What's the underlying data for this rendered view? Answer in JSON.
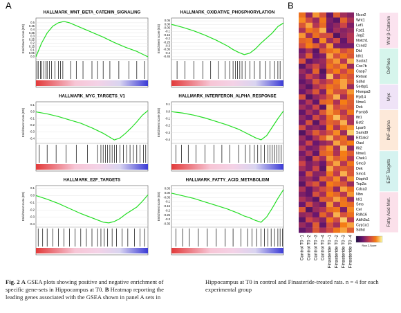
{
  "panel_a": {
    "label": "A",
    "y_label": "Enrichment score (ES)",
    "curve_color": "#22dd22",
    "plots": [
      {
        "title": "HALLMARK_WNT_BETA_CATENIN_SIGNALING",
        "ylim": [
          -0.02,
          0.55
        ],
        "yticks": [
          0.5,
          0.45,
          0.4,
          0.35,
          0.3,
          0.25,
          0.2,
          0.15,
          0.1,
          0.05,
          {
            "value": 0,
            "label": "0.0"
          }
        ],
        "x": [
          0,
          0.05,
          0.1,
          0.15,
          0.2,
          0.25,
          0.3,
          0.4,
          0.5,
          0.6,
          0.7,
          0.8,
          0.9,
          0.95,
          1
        ],
        "values": [
          0,
          0.2,
          0.35,
          0.45,
          0.5,
          0.52,
          0.5,
          0.43,
          0.36,
          0.29,
          0.21,
          0.14,
          0.08,
          0.04,
          0
        ],
        "hits": [
          0.01,
          0.02,
          0.04,
          0.05,
          0.07,
          0.09,
          0.1,
          0.12,
          0.14,
          0.17,
          0.2,
          0.22,
          0.24,
          0.31,
          0.36,
          0.42,
          0.5,
          0.55,
          0.6,
          0.66,
          0.74,
          0.83,
          0.9,
          0.97
        ]
      },
      {
        "title": "HALLMARK_OXIDATIVE_PHOSPHORYLATION",
        "ylim": [
          -0.47,
          0.07
        ],
        "yticks": [
          0.05,
          {
            "value": 0,
            "label": "0.00"
          },
          -0.05,
          -0.1,
          -0.15,
          -0.2,
          -0.25,
          -0.3,
          -0.35,
          -0.4,
          -0.45
        ],
        "x": [
          0,
          0.1,
          0.2,
          0.3,
          0.4,
          0.5,
          0.55,
          0.6,
          0.65,
          0.7,
          0.75,
          0.8,
          0.9,
          0.95,
          1
        ],
        "values": [
          0,
          -0.04,
          -0.09,
          -0.15,
          -0.22,
          -0.3,
          -0.35,
          -0.39,
          -0.42,
          -0.4,
          -0.34,
          -0.26,
          -0.12,
          -0.03,
          0.02
        ],
        "hits": [
          0.05,
          0.12,
          0.2,
          0.28,
          0.35,
          0.42,
          0.48,
          0.52,
          0.55,
          0.57,
          0.59,
          0.61,
          0.63,
          0.66,
          0.7,
          0.74,
          0.79,
          0.84,
          0.88,
          0.92,
          0.95,
          0.97
        ]
      },
      {
        "title": "HALLMARK_MYC_TARGETS_V1",
        "ylim": [
          -0.45,
          0.13
        ],
        "yticks": [
          0.1,
          {
            "value": 0,
            "label": "0.0"
          },
          -0.1,
          -0.2,
          -0.3,
          -0.4
        ],
        "x": [
          0,
          0.1,
          0.2,
          0.3,
          0.4,
          0.5,
          0.6,
          0.65,
          0.7,
          0.75,
          0.8,
          0.85,
          0.9,
          0.95,
          1
        ],
        "values": [
          0,
          -0.03,
          -0.07,
          -0.12,
          -0.17,
          -0.24,
          -0.32,
          -0.37,
          -0.42,
          -0.39,
          -0.32,
          -0.24,
          -0.15,
          -0.05,
          0.02
        ],
        "hits": [
          0.03,
          0.1,
          0.18,
          0.27,
          0.36,
          0.46,
          0.55,
          0.58,
          0.6,
          0.62,
          0.64,
          0.66,
          0.68,
          0.7,
          0.72,
          0.75,
          0.78,
          0.81,
          0.84,
          0.87,
          0.9,
          0.93,
          0.96,
          0.98
        ]
      },
      {
        "title": "HALLMARK_INTERFERON_ALPHA_RESPONSE",
        "ylim": [
          -0.43,
          0.12
        ],
        "yticks": [
          0.1,
          {
            "value": 0,
            "label": "0.0"
          },
          -0.1,
          -0.2,
          -0.3,
          -0.4
        ],
        "x": [
          0,
          0.1,
          0.2,
          0.3,
          0.4,
          0.5,
          0.6,
          0.65,
          0.7,
          0.75,
          0.8,
          0.85,
          0.9,
          0.95,
          1
        ],
        "values": [
          0,
          -0.02,
          -0.05,
          -0.09,
          -0.14,
          -0.19,
          -0.25,
          -0.29,
          -0.33,
          -0.37,
          -0.4,
          -0.34,
          -0.22,
          -0.1,
          0.01
        ],
        "hits": [
          0.04,
          0.09,
          0.15,
          0.22,
          0.3,
          0.38,
          0.45,
          0.52,
          0.6,
          0.66,
          0.7,
          0.74,
          0.77,
          0.8,
          0.83,
          0.86,
          0.88,
          0.9,
          0.92,
          0.94,
          0.96,
          0.98
        ]
      },
      {
        "title": "HALLMARK_E2F_TARGETS",
        "ylim": [
          -0.42,
          0.12
        ],
        "yticks": [
          0.1,
          {
            "value": 0,
            "label": "0.0"
          },
          -0.1,
          -0.2,
          -0.3,
          -0.4
        ],
        "x": [
          0,
          0.1,
          0.2,
          0.3,
          0.4,
          0.5,
          0.55,
          0.6,
          0.65,
          0.7,
          0.75,
          0.8,
          0.9,
          0.95,
          1
        ],
        "values": [
          0,
          -0.05,
          -0.11,
          -0.18,
          -0.25,
          -0.31,
          -0.34,
          -0.37,
          -0.38,
          -0.36,
          -0.32,
          -0.26,
          -0.16,
          -0.08,
          0.01
        ],
        "hits": [
          0.02,
          0.06,
          0.1,
          0.15,
          0.2,
          0.25,
          0.3,
          0.35,
          0.4,
          0.45,
          0.5,
          0.55,
          0.58,
          0.61,
          0.64,
          0.68,
          0.72,
          0.77,
          0.82,
          0.88,
          0.93,
          0.97
        ]
      },
      {
        "title": "HALLMARK_FATTY_ACID_METABOLISM",
        "ylim": [
          -0.37,
          0.07
        ],
        "yticks": [
          0.05,
          {
            "value": 0,
            "label": "0.00"
          },
          -0.05,
          -0.1,
          -0.15,
          -0.2,
          -0.25,
          -0.3,
          -0.35
        ],
        "x": [
          0,
          0.1,
          0.2,
          0.3,
          0.4,
          0.5,
          0.6,
          0.65,
          0.7,
          0.75,
          0.8,
          0.85,
          0.9,
          0.95,
          1
        ],
        "values": [
          0,
          -0.03,
          -0.06,
          -0.1,
          -0.14,
          -0.18,
          -0.23,
          -0.26,
          -0.28,
          -0.31,
          -0.33,
          -0.27,
          -0.17,
          -0.06,
          0.04
        ],
        "hits": [
          0.04,
          0.1,
          0.16,
          0.24,
          0.32,
          0.4,
          0.48,
          0.55,
          0.62,
          0.68,
          0.72,
          0.76,
          0.8,
          0.83,
          0.86,
          0.89,
          0.92,
          0.95,
          0.97,
          0.99
        ]
      }
    ]
  },
  "panel_b": {
    "label": "B",
    "zlim": [
      -2,
      2
    ],
    "colormap": [
      "#1b0c41",
      "#6a176e",
      "#c73e4c",
      "#f57d15",
      "#fcffa4"
    ],
    "colorbar_label": "Row Z-Score",
    "columns": [
      "Control T0 -1",
      "Control T0 -2",
      "Control T0 -3",
      "Control T0 -4",
      "Finasteride T0 -1",
      "Finasteride T0 -2",
      "Finasteride T0 -3",
      "Finasteride T0 -4"
    ],
    "groups": [
      {
        "label": "Wnt β-Catenin",
        "color": "#fbe3ef",
        "genes": [
          "Ncor2",
          "Wnt1",
          "Lef1",
          "Fzd1",
          "Jag2",
          "Notch1",
          "Ccnd2"
        ],
        "values": [
          [
            0.8,
            -0.6,
            1.2,
            0.3,
            -1.1,
            0.5,
            -0.4,
            -0.7
          ],
          [
            1.1,
            0.2,
            -0.5,
            0.9,
            -0.8,
            -1.2,
            0.6,
            -0.3
          ],
          [
            0.4,
            1.3,
            -0.2,
            0.7,
            -0.9,
            -0.6,
            0.1,
            -0.8
          ],
          [
            -0.3,
            0.9,
            0.6,
            1.4,
            -1.0,
            -0.4,
            -0.7,
            -0.5
          ],
          [
            1.2,
            -0.4,
            0.8,
            0.2,
            0.3,
            -1.3,
            -0.6,
            -0.2
          ],
          [
            0.6,
            0.8,
            -0.9,
            1.1,
            -0.5,
            0.2,
            -1.1,
            -0.2
          ],
          [
            0.2,
            1.0,
            0.5,
            -0.3,
            1.2,
            -0.8,
            -0.9,
            -0.9
          ]
        ]
      },
      {
        "label": "OxPhos",
        "color": "#d6f5ec",
        "genes": [
          "Dld",
          "Idh1",
          "Sucla2",
          "Cox7b",
          "Casp7",
          "Retsat",
          "Sdhd"
        ],
        "values": [
          [
            -0.9,
            -0.3,
            -1.2,
            0.4,
            0.8,
            1.1,
            0.2,
            0.6
          ],
          [
            -0.6,
            0.5,
            -1.0,
            -0.8,
            1.3,
            0.3,
            0.9,
            0.4
          ],
          [
            0.3,
            -1.1,
            -0.7,
            -0.5,
            0.6,
            1.2,
            -0.2,
            1.4
          ],
          [
            -1.2,
            -0.4,
            0.2,
            -0.6,
            0.9,
            0.5,
            1.1,
            -0.5
          ],
          [
            -0.5,
            -0.9,
            0.6,
            -1.3,
            0.4,
            1.0,
            0.1,
            0.8
          ],
          [
            -0.8,
            0.1,
            -0.4,
            -1.0,
            1.5,
            -0.2,
            0.7,
            0.3
          ],
          [
            -1.1,
            -0.7,
            0.4,
            -0.3,
            0.2,
            0.9,
            1.3,
            0.5
          ]
        ]
      },
      {
        "label": "Myc",
        "color": "#efe3f7",
        "genes": [
          "Serbp1",
          "Hnrnpa3",
          "Rpl14",
          "Nme1",
          "Dek"
        ],
        "values": [
          [
            -0.7,
            -1.2,
            -0.3,
            0.2,
            0.9,
            0.6,
            1.3,
            -0.5
          ],
          [
            -1.0,
            -0.5,
            0.4,
            -0.8,
            1.1,
            0.3,
            0.2,
            1.2
          ],
          [
            0.3,
            -1.3,
            -0.6,
            -0.2,
            0.5,
            1.4,
            -0.4,
            0.7
          ],
          [
            -0.9,
            -0.2,
            -1.1,
            0.6,
            0.8,
            -0.3,
            1.0,
            0.5
          ],
          [
            -0.4,
            -0.8,
            0.1,
            -1.2,
            1.3,
            0.2,
            0.6,
            0.4
          ]
        ]
      },
      {
        "label": "INF-alpha",
        "color": "#fde9d9",
        "genes": [
          "Psmb8",
          "Ifit1",
          "Bst2",
          "Lpar6",
          "Samd9",
          "Eif2ak2",
          "Oasl",
          "Ifit2"
        ],
        "values": [
          [
            -1.1,
            -0.3,
            -0.8,
            0.4,
            1.2,
            0.7,
            -0.2,
            0.9
          ],
          [
            -0.6,
            -1.0,
            0.2,
            -0.5,
            0.8,
            1.5,
            0.3,
            -0.2
          ],
          [
            -0.9,
            0.3,
            -1.2,
            -0.1,
            0.6,
            0.4,
            1.4,
            -0.3
          ],
          [
            0.2,
            -0.8,
            -0.6,
            -0.9,
            1.0,
            -0.3,
            0.9,
            1.2
          ],
          [
            -1.3,
            -0.4,
            0.5,
            -0.2,
            0.3,
            1.1,
            -0.5,
            1.6
          ],
          [
            -0.5,
            -1.1,
            -0.3,
            0.6,
            1.4,
            0.2,
            0.8,
            -0.7
          ],
          [
            -0.8,
            0.1,
            -1.0,
            -0.6,
            -0.3,
            1.3,
            0.6,
            1.0
          ],
          [
            -0.2,
            -0.9,
            -0.7,
            0.3,
            1.1,
            -0.4,
            1.5,
            -0.6
          ]
        ]
      },
      {
        "label": "E2F Targets",
        "color": "#d5f3f0",
        "genes": [
          "Nme1",
          "Chek1",
          "Smc3",
          "Dek",
          "Smc4",
          "Diaph3",
          "Top2a",
          "Cdca3"
        ],
        "values": [
          [
            -0.9,
            -0.2,
            -1.1,
            0.6,
            0.8,
            -0.3,
            1.0,
            0.5
          ],
          [
            -0.6,
            -1.2,
            0.3,
            -0.4,
            1.2,
            0.5,
            0.9,
            -0.2
          ],
          [
            0.1,
            -0.8,
            -0.5,
            -1.0,
            0.4,
            1.3,
            -0.2,
            0.9
          ],
          [
            -0.4,
            -0.8,
            0.1,
            -1.2,
            1.3,
            0.2,
            0.6,
            0.4
          ],
          [
            -1.0,
            0.3,
            -0.7,
            -0.6,
            0.9,
            -0.1,
            1.4,
            0.4
          ],
          [
            -0.7,
            -0.5,
            -0.9,
            0.5,
            0.2,
            1.1,
            -0.3,
            1.2
          ],
          [
            -1.2,
            -0.1,
            0.4,
            -0.8,
            1.0,
            0.7,
            0.3,
            -0.5
          ],
          [
            -0.3,
            -1.1,
            -0.4,
            0.2,
            0.6,
            -0.6,
            1.3,
            0.8
          ]
        ]
      },
      {
        "label": "Fatty Acid Met.",
        "color": "#fbe0ea",
        "genes": [
          "Nbn",
          "Idi1",
          "Sms",
          "Cel",
          "Rdh16",
          "Aldh3a1",
          "Cyp1a1",
          "Sdhd"
        ],
        "values": [
          [
            -0.8,
            -1.1,
            0.3,
            -0.4,
            1.0,
            0.6,
            -0.2,
            1.2
          ],
          [
            -0.3,
            -0.7,
            -1.2,
            0.5,
            0.4,
            1.3,
            0.8,
            -0.5
          ],
          [
            -1.0,
            0.2,
            -0.6,
            -0.9,
            1.2,
            -0.3,
            0.9,
            0.7
          ],
          [
            0.4,
            -1.3,
            -0.5,
            -0.2,
            0.7,
            0.9,
            -0.8,
            1.1
          ],
          [
            -0.6,
            -0.4,
            -1.0,
            0.6,
            -0.2,
            1.4,
            0.3,
            0.8
          ],
          [
            -1.2,
            0.1,
            -0.3,
            -0.7,
            0.9,
            0.2,
            1.6,
            -0.1
          ],
          [
            -0.5,
            -0.9,
            0.5,
            -1.1,
            0.3,
            -0.4,
            1.0,
            1.3
          ],
          [
            -1.1,
            -0.7,
            0.4,
            -0.3,
            0.2,
            0.9,
            1.3,
            0.5
          ]
        ]
      }
    ]
  },
  "caption": {
    "fig": "Fig. 2",
    "a": "A",
    "a_text": "GSEA plots showing positive and negative enrichment of specific gene-sets in Hippocampus at T0.",
    "b": "B",
    "b_text": "Heatmap reporting the leading genes associated with the GSEA shown in panel A sets in",
    "right": "Hippocampus at T0 in control and Finasteride-treated rats. n = 4 for each experimental group"
  }
}
